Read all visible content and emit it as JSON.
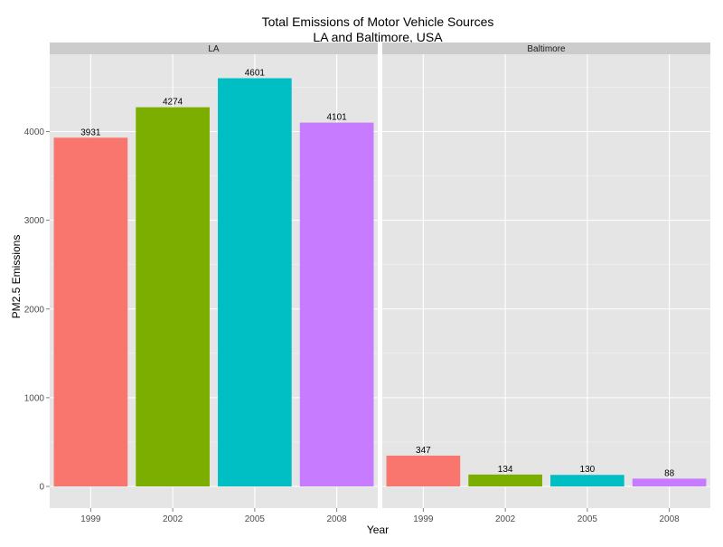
{
  "chart_data": {
    "type": "bar",
    "title": "Total Emissions of Motor Vehicle Sources",
    "subtitle": "LA and Baltimore, USA",
    "xlabel": "Year",
    "ylabel": "PM2.5 Emissions",
    "ylim": [
      0,
      4600
    ],
    "yticks": [
      "0",
      "1000",
      "2000",
      "3000",
      "4000"
    ],
    "grid": true,
    "categories": [
      "1999",
      "2002",
      "2005",
      "2008"
    ],
    "colors": [
      "#F8766D",
      "#7CAE00",
      "#00BFC4",
      "#C77CFF"
    ],
    "panels": [
      {
        "name": "LA",
        "values": [
          3931,
          4274,
          4601,
          4101
        ]
      },
      {
        "name": "Baltimore",
        "values": [
          347,
          134,
          130,
          88
        ]
      }
    ]
  }
}
